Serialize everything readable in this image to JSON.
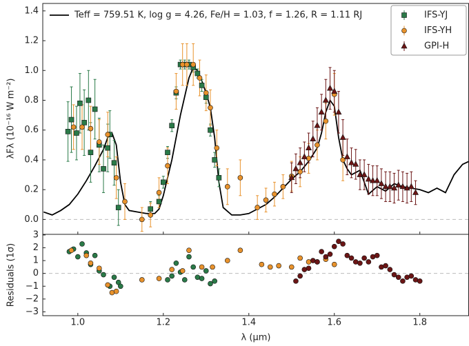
{
  "chart_data": [
    {
      "type": "scatter",
      "ylabel": "λFλ (10⁻¹⁶ W m⁻²)",
      "xlim": [
        0.918,
        1.915
      ],
      "ylim": [
        -0.1,
        1.45
      ],
      "xticks": [
        1.0,
        1.2,
        1.4,
        1.6,
        1.8
      ],
      "yticks": [
        {
          "value": 0,
          "label": "0.0"
        },
        0.2,
        0.4,
        0.6,
        0.8,
        {
          "value": 1,
          "label": "1.0"
        },
        1.2,
        1.4
      ],
      "legend": "upper right",
      "series": [
        {
          "name": "Teff = 759.51 K, log g = 4.26, Fe/H = 1.03, f = 1.26, R = 1.11 RJ",
          "color": "#000000",
          "style": "line",
          "x": [
            0.92,
            0.94,
            0.96,
            0.98,
            1.0,
            1.02,
            1.04,
            1.06,
            1.07,
            1.08,
            1.09,
            1.1,
            1.11,
            1.12,
            1.14,
            1.16,
            1.18,
            1.19,
            1.2,
            1.22,
            1.24,
            1.26,
            1.27,
            1.28,
            1.29,
            1.3,
            1.31,
            1.32,
            1.33,
            1.34,
            1.36,
            1.38,
            1.4,
            1.42,
            1.44,
            1.46,
            1.48,
            1.5,
            1.52,
            1.54,
            1.56,
            1.57,
            1.58,
            1.59,
            1.6,
            1.61,
            1.62,
            1.63,
            1.64,
            1.66,
            1.68,
            1.7,
            1.72,
            1.74,
            1.76,
            1.78,
            1.8,
            1.82,
            1.84,
            1.86,
            1.88,
            1.9,
            1.915
          ],
          "values": [
            0.05,
            0.03,
            0.06,
            0.1,
            0.17,
            0.26,
            0.36,
            0.47,
            0.55,
            0.58,
            0.5,
            0.25,
            0.1,
            0.06,
            0.05,
            0.04,
            0.04,
            0.07,
            0.16,
            0.4,
            0.7,
            0.95,
            1.02,
            1.0,
            0.93,
            0.85,
            0.75,
            0.55,
            0.25,
            0.08,
            0.03,
            0.03,
            0.04,
            0.07,
            0.1,
            0.15,
            0.21,
            0.27,
            0.32,
            0.39,
            0.48,
            0.58,
            0.72,
            0.8,
            0.76,
            0.55,
            0.4,
            0.34,
            0.3,
            0.33,
            0.17,
            0.22,
            0.19,
            0.24,
            0.22,
            0.21,
            0.2,
            0.18,
            0.21,
            0.18,
            0.3,
            0.37,
            0.39
          ]
        },
        {
          "name": "IFS-YJ",
          "color": "#2a7a48",
          "style": "square",
          "x": [
            0.977,
            0.985,
            0.997,
            1.005,
            1.015,
            1.025,
            1.03,
            1.04,
            1.05,
            1.06,
            1.07,
            1.075,
            1.085,
            1.095,
            1.17,
            1.19,
            1.2,
            1.21,
            1.22,
            1.23,
            1.24,
            1.25,
            1.26,
            1.27,
            1.28,
            1.29,
            1.3,
            1.31,
            1.32,
            1.33
          ],
          "values": [
            0.59,
            0.67,
            0.58,
            0.78,
            0.65,
            0.8,
            0.45,
            0.74,
            0.5,
            0.34,
            0.48,
            0.57,
            0.38,
            0.08,
            0.07,
            0.12,
            0.25,
            0.45,
            0.63,
            0.85,
            1.04,
            1.04,
            1.04,
            1.02,
            0.98,
            0.9,
            0.82,
            0.6,
            0.4,
            0.28
          ],
          "errors": [
            0.2,
            0.22,
            0.18,
            0.2,
            0.22,
            0.2,
            0.2,
            0.2,
            0.18,
            0.16,
            0.16,
            0.16,
            0.15,
            0.12,
            0.05,
            0.04,
            0.04,
            0.04,
            0.04,
            0.04,
            0.03,
            0.03,
            0.03,
            0.03,
            0.03,
            0.04,
            0.04,
            0.04,
            0.05,
            0.06
          ]
        },
        {
          "name": "IFS-YH",
          "color": "#e8922c",
          "style": "circle",
          "x": [
            0.99,
            1.01,
            1.03,
            1.05,
            1.07,
            1.09,
            1.11,
            1.15,
            1.17,
            1.19,
            1.21,
            1.23,
            1.245,
            1.255,
            1.27,
            1.285,
            1.3,
            1.31,
            1.325,
            1.35,
            1.38,
            1.42,
            1.44,
            1.46,
            1.48,
            1.5,
            1.52,
            1.54,
            1.56,
            1.58,
            1.6,
            1.62
          ],
          "values": [
            0.62,
            0.62,
            0.61,
            0.52,
            0.57,
            0.28,
            0.12,
            0.0,
            0.03,
            0.18,
            0.36,
            0.86,
            1.04,
            1.04,
            1.04,
            0.95,
            0.85,
            0.75,
            0.48,
            0.22,
            0.28,
            0.08,
            0.13,
            0.17,
            0.22,
            0.29,
            0.32,
            0.41,
            0.5,
            0.66,
            0.84,
            0.4
          ],
          "errors": [
            0.15,
            0.15,
            0.15,
            0.15,
            0.15,
            0.14,
            0.12,
            0.08,
            0.08,
            0.1,
            0.12,
            0.12,
            0.14,
            0.14,
            0.14,
            0.12,
            0.12,
            0.12,
            0.12,
            0.12,
            0.12,
            0.08,
            0.08,
            0.08,
            0.08,
            0.1,
            0.1,
            0.1,
            0.1,
            0.12,
            0.14,
            0.14
          ]
        },
        {
          "name": "GPI-H",
          "color": "#6b1515",
          "style": "triangle",
          "x": [
            1.5,
            1.51,
            1.52,
            1.53,
            1.54,
            1.55,
            1.56,
            1.57,
            1.58,
            1.59,
            1.6,
            1.61,
            1.62,
            1.63,
            1.64,
            1.65,
            1.66,
            1.67,
            1.68,
            1.69,
            1.7,
            1.71,
            1.72,
            1.73,
            1.74,
            1.75,
            1.76,
            1.77,
            1.78,
            1.79
          ],
          "values": [
            0.28,
            0.34,
            0.38,
            0.42,
            0.48,
            0.54,
            0.63,
            0.72,
            0.8,
            0.88,
            0.86,
            0.72,
            0.55,
            0.42,
            0.38,
            0.37,
            0.3,
            0.3,
            0.27,
            0.26,
            0.26,
            0.24,
            0.22,
            0.22,
            0.21,
            0.23,
            0.22,
            0.21,
            0.22,
            0.18
          ],
          "errors": [
            0.1,
            0.1,
            0.1,
            0.1,
            0.1,
            0.12,
            0.12,
            0.12,
            0.14,
            0.14,
            0.14,
            0.14,
            0.12,
            0.12,
            0.1,
            0.1,
            0.1,
            0.1,
            0.1,
            0.1,
            0.1,
            0.1,
            0.1,
            0.1,
            0.1,
            0.1,
            0.1,
            0.1,
            0.1,
            0.08
          ]
        }
      ]
    },
    {
      "type": "scatter",
      "ylabel": "Residuals (1σ)",
      "xlabel": "λ (μm)",
      "xlim": [
        0.918,
        1.915
      ],
      "ylim": [
        -3.3,
        3.05
      ],
      "xticks": [
        {
          "value": 1,
          "label": "1.0"
        },
        1.2,
        1.4,
        1.6,
        1.8
      ],
      "yticks": [
        {
          "value": -3,
          "label": "−3"
        },
        {
          "value": -2,
          "label": "−2"
        },
        {
          "value": -1,
          "label": "−1"
        },
        0,
        1,
        2,
        3
      ],
      "series": [
        {
          "color": "#2a7a48",
          "style": "circle",
          "x": [
            0.98,
            0.99,
            1.0,
            1.01,
            1.02,
            1.03,
            1.04,
            1.05,
            1.06,
            1.075,
            1.085,
            1.095,
            1.1,
            1.21,
            1.22,
            1.23,
            1.24,
            1.25,
            1.26,
            1.27,
            1.28,
            1.29,
            1.3,
            1.31,
            1.32
          ],
          "values": [
            1.7,
            1.9,
            1.3,
            2.3,
            1.6,
            0.7,
            1.4,
            0.2,
            -0.1,
            -1.0,
            -0.3,
            -0.7,
            -1.0,
            -0.5,
            -0.2,
            0.8,
            0.1,
            -0.5,
            1.3,
            0.5,
            -0.3,
            -0.4,
            0.2,
            -0.8,
            -0.6
          ]
        },
        {
          "color": "#e8922c",
          "style": "circle",
          "x": [
            0.985,
            1.02,
            1.03,
            1.05,
            1.07,
            1.08,
            1.09,
            1.15,
            1.19,
            1.22,
            1.245,
            1.26,
            1.29,
            1.315,
            1.35,
            1.38,
            1.43,
            1.45,
            1.47,
            1.5,
            1.52,
            1.54,
            1.56,
            1.58,
            1.6
          ],
          "values": [
            1.8,
            1.4,
            0.8,
            0.4,
            -0.9,
            -1.5,
            -1.4,
            -0.5,
            -0.4,
            0.3,
            0.2,
            1.8,
            0.5,
            0.5,
            1.0,
            1.8,
            0.7,
            0.5,
            0.6,
            0.5,
            1.2,
            0.9,
            0.9,
            1.1,
            0.7
          ]
        },
        {
          "color": "#6b1515",
          "style": "circle",
          "x": [
            1.51,
            1.52,
            1.53,
            1.54,
            1.55,
            1.56,
            1.57,
            1.58,
            1.59,
            1.6,
            1.61,
            1.62,
            1.63,
            1.64,
            1.65,
            1.66,
            1.67,
            1.68,
            1.69,
            1.7,
            1.71,
            1.72,
            1.73,
            1.74,
            1.75,
            1.76,
            1.77,
            1.78,
            1.79,
            1.8
          ],
          "values": [
            -0.6,
            -0.2,
            0.3,
            0.4,
            1.0,
            0.9,
            1.7,
            1.3,
            1.5,
            2.1,
            2.5,
            2.3,
            1.4,
            1.2,
            0.9,
            0.8,
            1.2,
            0.9,
            1.3,
            1.4,
            0.5,
            0.6,
            0.3,
            -0.1,
            -0.3,
            -0.6,
            -0.3,
            -0.2,
            -0.5,
            -0.6
          ]
        }
      ]
    }
  ]
}
